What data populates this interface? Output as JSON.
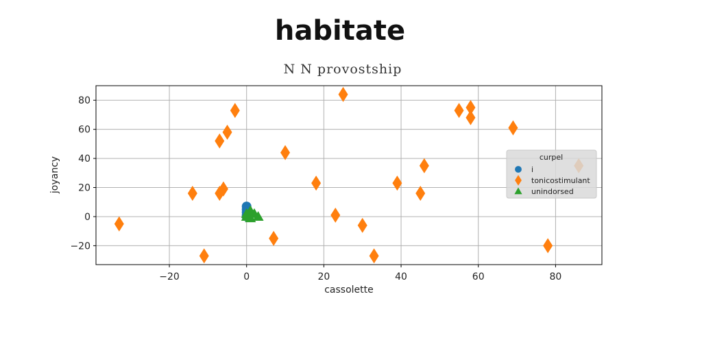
{
  "title": "habitate",
  "subtitle": "N N provostship",
  "colors": {
    "i": "#1f77b4",
    "tonicostimulant": "#ff7f0e",
    "unindorsed": "#2ca02c"
  },
  "chart_data": {
    "type": "scatter",
    "title": "N N provostship",
    "xlabel": "cassolette",
    "ylabel": "joyancy",
    "xlim": [
      -39,
      92
    ],
    "ylim": [
      -33,
      90
    ],
    "xticks": [
      -20,
      0,
      20,
      40,
      60,
      80
    ],
    "yticks": [
      -20,
      0,
      20,
      40,
      60,
      80
    ],
    "xtick_labels": [
      "−20",
      "0",
      "20",
      "40",
      "60",
      "80"
    ],
    "ytick_labels": [
      "−20",
      "0",
      "20",
      "40",
      "60",
      "80"
    ],
    "grid": true,
    "legend": {
      "title": "curpel",
      "placement": "center-right"
    },
    "series": [
      {
        "name": "i",
        "marker": "circle",
        "color": "#1f77b4",
        "points": [
          [
            0,
            7
          ],
          [
            0,
            5
          ],
          [
            0,
            3
          ],
          [
            0,
            1
          ],
          [
            0,
            0
          ]
        ]
      },
      {
        "name": "tonicostimulant",
        "marker": "diamond",
        "color": "#ff7f0e",
        "points": [
          [
            -33,
            -5
          ],
          [
            -14,
            16
          ],
          [
            -11,
            -27
          ],
          [
            -7,
            16
          ],
          [
            -6,
            19
          ],
          [
            -7,
            52
          ],
          [
            -5,
            58
          ],
          [
            -3,
            73
          ],
          [
            7,
            -15
          ],
          [
            10,
            44
          ],
          [
            18,
            23
          ],
          [
            23,
            1
          ],
          [
            25,
            84
          ],
          [
            30,
            -6
          ],
          [
            33,
            -27
          ],
          [
            39,
            23
          ],
          [
            45,
            16
          ],
          [
            46,
            35
          ],
          [
            55,
            73
          ],
          [
            58,
            75
          ],
          [
            58,
            68
          ],
          [
            69,
            61
          ],
          [
            78,
            -20
          ],
          [
            86,
            35
          ]
        ]
      },
      {
        "name": "unindorsed",
        "marker": "triangle",
        "color": "#2ca02c",
        "points": [
          [
            0,
            0
          ],
          [
            1,
            4
          ],
          [
            2,
            2
          ],
          [
            3,
            0
          ],
          [
            1,
            -1
          ],
          [
            0,
            2
          ]
        ]
      }
    ]
  }
}
